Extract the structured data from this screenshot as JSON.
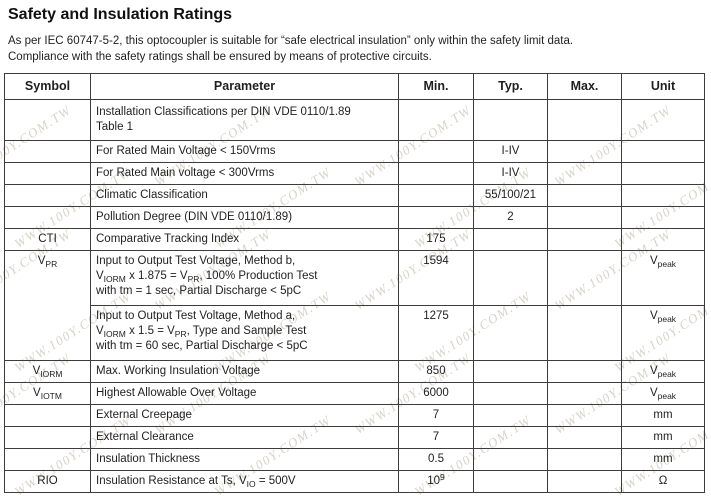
{
  "page": {
    "title": "Safety and Insulation Ratings",
    "intro_line1": "As per IEC 60747-5-2, this optocoupler is suitable for “safe electrical insulation” only within the safety limit data.",
    "intro_line2": "Compliance with the safety ratings shall be ensured by means of protective circuits.",
    "text_color": "#1f1f1f"
  },
  "watermark": {
    "text": "WWW.100Y.COM.TW",
    "color": "#d8d3c9"
  },
  "table": {
    "border_color": "#3c3c3c",
    "headers": [
      "Symbol",
      "Parameter",
      "Min.",
      "Typ.",
      "Max.",
      "Unit"
    ],
    "rows": [
      {
        "symbol": [],
        "parameter": [
          "Installation Classifications per DIN VDE 0110/1.89",
          "\n",
          "Table 1"
        ],
        "min": [],
        "typ": [],
        "max": [],
        "unit": []
      },
      {
        "symbol": [],
        "parameter": [
          "For Rated Main Voltage < 150Vrms"
        ],
        "min": [],
        "typ": [
          "I-IV"
        ],
        "max": [],
        "unit": []
      },
      {
        "symbol": [],
        "parameter": [
          "For Rated Main voltage < 300Vrms"
        ],
        "min": [],
        "typ": [
          "I-IV"
        ],
        "max": [],
        "unit": []
      },
      {
        "symbol": [],
        "parameter": [
          "Climatic Classification"
        ],
        "min": [],
        "typ": [
          "55/100/21"
        ],
        "max": [],
        "unit": []
      },
      {
        "symbol": [],
        "parameter": [
          "Pollution Degree (DIN VDE 0110/1.89)"
        ],
        "min": [],
        "typ": [
          "2"
        ],
        "max": [],
        "unit": []
      },
      {
        "symbol": [
          "CTI"
        ],
        "parameter": [
          "Comparative Tracking Index"
        ],
        "min": [
          "175"
        ],
        "typ": [],
        "max": [],
        "unit": []
      },
      {
        "symbol": [
          "V",
          [
            "PR",
            "sub"
          ]
        ],
        "symbol_rowspan": 2,
        "parameter": [
          "Input to Output Test Voltage, Method b,",
          "\n",
          "V",
          [
            "IORM",
            "sub"
          ],
          " x 1.875 = V",
          [
            "PR",
            "sub"
          ],
          ", 100% Production Test",
          "\n",
          "with tm = 1 sec, Partial Discharge < 5pC"
        ],
        "min": [
          "1594"
        ],
        "typ": [],
        "max": [],
        "unit": [
          "V",
          [
            "peak",
            "sub"
          ]
        ]
      },
      {
        "skip_symbol": true,
        "parameter": [
          "Input to Output Test Voltage, Method a,",
          "\n",
          "V",
          [
            "IORM",
            "sub"
          ],
          " x 1.5 = V",
          [
            "PR",
            "sub"
          ],
          ", Type and Sample Test",
          "\n",
          "with tm = 60 sec, Partial Discharge < 5pC"
        ],
        "min": [
          "1275"
        ],
        "typ": [],
        "max": [],
        "unit": [
          "V",
          [
            "peak",
            "sub"
          ]
        ]
      },
      {
        "symbol": [
          "V",
          [
            "IORM",
            "sub"
          ]
        ],
        "parameter": [
          "Max. Working Insulation Voltage"
        ],
        "min": [
          "850"
        ],
        "typ": [],
        "max": [],
        "unit": [
          "V",
          [
            "peak",
            "sub"
          ]
        ]
      },
      {
        "symbol": [
          "V",
          [
            "IOTM",
            "sub"
          ]
        ],
        "parameter": [
          "Highest Allowable Over Voltage"
        ],
        "min": [
          "6000"
        ],
        "typ": [],
        "max": [],
        "unit": [
          "V",
          [
            "peak",
            "sub"
          ]
        ]
      },
      {
        "symbol": [],
        "parameter": [
          "External Creepage"
        ],
        "min": [
          "7"
        ],
        "typ": [],
        "max": [],
        "unit": [
          "mm"
        ]
      },
      {
        "symbol": [],
        "parameter": [
          "External Clearance"
        ],
        "min": [
          "7"
        ],
        "typ": [],
        "max": [],
        "unit": [
          "mm"
        ]
      },
      {
        "symbol": [],
        "parameter": [
          "Insulation Thickness"
        ],
        "min": [
          "0.5"
        ],
        "typ": [],
        "max": [],
        "unit": [
          "mm"
        ]
      },
      {
        "symbol": [
          "RIO"
        ],
        "parameter": [
          "Insulation Resistance at Ts, V",
          [
            "IO",
            "sub"
          ],
          " = 500V"
        ],
        "min": [
          "10",
          [
            "9",
            "sup"
          ]
        ],
        "typ": [],
        "max": [],
        "unit": [
          "Ω"
        ]
      }
    ]
  }
}
